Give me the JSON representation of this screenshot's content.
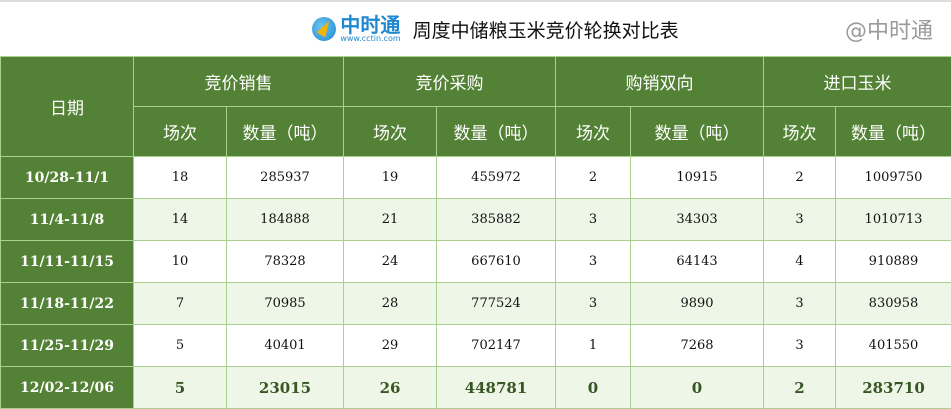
{
  "header": {
    "logo_cn": "中时通",
    "logo_url": "www.cctin.com",
    "title": "周度中储粮玉米竞价轮换对比表"
  },
  "table": {
    "date_header": "日期",
    "groups": [
      "竞价销售",
      "竞价采购",
      "购销双向",
      "进口玉米"
    ],
    "sub_headers": [
      "场次",
      "数量（吨）"
    ],
    "rows": [
      [
        "10/28-11/1",
        "18",
        "285937",
        "19",
        "455972",
        "2",
        "10915",
        "2",
        "1009750"
      ],
      [
        "11/4-11/8",
        "14",
        "184888",
        "21",
        "385882",
        "3",
        "34303",
        "3",
        "1010713"
      ],
      [
        "11/11-11/15",
        "10",
        "78328",
        "24",
        "667610",
        "3",
        "64143",
        "4",
        "910889"
      ],
      [
        "11/18-11/22",
        "7",
        "70985",
        "28",
        "777524",
        "3",
        "9890",
        "3",
        "830958"
      ],
      [
        "11/25-11/29",
        "5",
        "40401",
        "29",
        "702147",
        "1",
        "7268",
        "3",
        "401550"
      ],
      [
        "12/02-12/06",
        "5",
        "23015",
        "26",
        "448781",
        "0",
        "0",
        "2",
        "283710"
      ]
    ]
  },
  "watermark": "@中时通",
  "colors": {
    "header_green": "#538135",
    "row_alt": "#eef6e8",
    "border": "#a9d08e",
    "last_row_text": "#375623"
  }
}
